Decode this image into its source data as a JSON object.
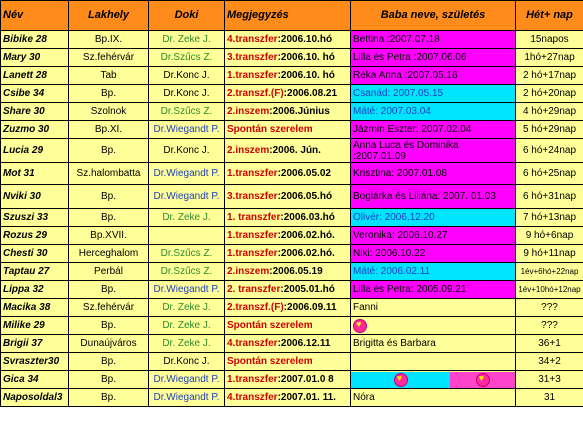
{
  "headers": {
    "nev": "Név",
    "lakhely": "Lakhely",
    "doki": "Doki",
    "megjegyzes": "Megjegyzés",
    "baba": "Baba neve, születés",
    "het": "Hét+ nap"
  },
  "rows": [
    {
      "nev": "Bibike 28",
      "lakhely": "Bp.IX.",
      "doki": "Dr. Zeke J.",
      "doki_color": "green",
      "meg_red": "4.transzfer",
      "meg_black": ":2006.10.hó",
      "baba": "Bettina :2007.07.18",
      "baba_bg": "magenta",
      "het": "15napos"
    },
    {
      "nev": "Mary 30",
      "lakhely": "Sz.fehérvár",
      "doki": "Dr.Szűcs Z.",
      "doki_color": "green",
      "meg_red": "3.transzfer",
      "meg_black": ":2006.10. hó",
      "baba": "Lilla és Petra :2007.06.06",
      "baba_bg": "magenta",
      "het": "1hó+27nap"
    },
    {
      "nev": "Lanett 28",
      "lakhely": "Tab",
      "doki": "Dr.Konc J.",
      "doki_color": "black",
      "meg_red": "1.transzfer",
      "meg_black": ":2006.10. hó",
      "baba": "Réka Anna :2007.05.16",
      "baba_bg": "magenta",
      "het": "2 hó+17nap"
    },
    {
      "nev": "Csibe 34",
      "lakhely": "Bp.",
      "doki": "Dr.Konc J.",
      "doki_color": "black",
      "meg_red": "2.transzf.(F)",
      "meg_black": ":2006.08.21",
      "baba": "Csanád: 2007.05.15",
      "baba_bg": "cyan",
      "het": "2 hó+20nap"
    },
    {
      "nev": "Share 30",
      "lakhely": "Szolnok",
      "doki": "Dr.Szűcs Z.",
      "doki_color": "green",
      "meg_red": "2.inszem",
      "meg_black": ":2006.Június",
      "baba": "Máté: 2007.03.04",
      "baba_bg": "cyan",
      "het": "4 hó+29nap"
    },
    {
      "nev": "Zuzmo 30",
      "lakhely": "Bp.XI.",
      "doki": "Dr.Wiegandt P.",
      "doki_color": "blue",
      "meg_red": "Spontán szerelem",
      "meg_black": "",
      "baba": "Jázmin Eszter: 2007.02.04",
      "baba_bg": "magenta",
      "het": "5 hó+29nap"
    },
    {
      "nev": "Lucia 29",
      "lakhely": "Bp.",
      "doki": "Dr.Konc J.",
      "doki_color": "black",
      "meg_red": "2.inszem",
      "meg_black": ":2006. Jún.",
      "baba": "Anna Luca és Dominika :2007.01.09",
      "baba_bg": "magenta",
      "het": "6 hó+24nap"
    },
    {
      "nev": "Mot 31",
      "lakhely": "Sz.halombatta",
      "doki": "Dr.Wiegandt P.",
      "doki_color": "blue",
      "meg_red": "1.transzfer",
      "meg_black": ":2006.05.02",
      "baba": "Krisztina: 2007.01.08",
      "baba_bg": "magenta",
      "het": "6 hó+25nap"
    },
    {
      "nev": "Nviki 30",
      "lakhely": "Bp.",
      "doki": "Dr.Wiegandt P.",
      "doki_color": "blue",
      "meg_red": "3.transzfer",
      "meg_black": ":2006.05.hó",
      "baba": "Boglárka és Liliána: 2007. 01.03",
      "baba_bg": "magenta",
      "het": "6 hó+31nap"
    },
    {
      "nev": "Szuszi 33",
      "lakhely": "Bp.",
      "doki": "Dr. Zeke J.",
      "doki_color": "green",
      "meg_red": "1. transzfer",
      "meg_black": ":2006.03.hó",
      "baba": "Olivér: 2006.12.20",
      "baba_bg": "cyan",
      "het": "7 hó+13nap"
    },
    {
      "nev": "Rozus 29",
      "lakhely": "Bp.XVII.",
      "doki": "",
      "doki_color": "black",
      "meg_red": "1.transzfer",
      "meg_black": ":2006.02.hó.",
      "baba": "Veronika: 2006.10.27",
      "baba_bg": "magenta",
      "het": "9 hó+6nap"
    },
    {
      "nev": "Chesti 30",
      "lakhely": "Herceghalom",
      "doki": "Dr.Szűcs Z.",
      "doki_color": "green",
      "meg_red": "1.transzfer",
      "meg_black": ":2006.02.hó.",
      "baba": "Niki: 2006.10.22",
      "baba_bg": "magenta",
      "het": "9 hó+11nap"
    },
    {
      "nev": "Taptau 27",
      "lakhely": "Perbál",
      "doki": "Dr.Szűcs Z.",
      "doki_color": "green",
      "meg_red": "2.inszem",
      "meg_black": ":2006.05.19",
      "baba": "Máté: 2006.02.11",
      "baba_bg": "cyan",
      "het": "1év+6hó+22nap"
    },
    {
      "nev": "Lippa 32",
      "lakhely": "Bp.",
      "doki": "Dr.Wiegandt P.",
      "doki_color": "blue",
      "meg_red": "2. transzfer",
      "meg_black": ":2005.01.hó",
      "baba": "Lilla és Petra: 2005.09.21",
      "baba_bg": "magenta",
      "het": "1év+10hó+12nap"
    },
    {
      "nev": "Macika 38",
      "lakhely": "Sz.fehérvár",
      "doki": "Dr. Zeke J.",
      "doki_color": "green",
      "meg_red": "2.transzf.(F)",
      "meg_black": ":2006.09.11",
      "baba": "Fanni",
      "baba_bg": "yellow",
      "het": "???"
    },
    {
      "nev": "Milike 29",
      "lakhely": "Bp.",
      "doki": "Dr. Zeke J.",
      "doki_color": "green",
      "meg_red": "Spontán szerelem",
      "meg_black": "",
      "baba": "heart",
      "baba_bg": "yellow",
      "het": "???"
    },
    {
      "nev": "Brigii 37",
      "lakhely": "Dunaújváros",
      "doki": "Dr. Zeke J.",
      "doki_color": "green",
      "meg_red": "4.transzfer",
      "meg_black": ":2006.12.11",
      "baba": "Brigitta és Barbara",
      "baba_bg": "yellow",
      "het": "36+1"
    },
    {
      "nev": "Svraszter30",
      "lakhely": "Bp.",
      "doki": "Dr.Konc J.",
      "doki_color": "black",
      "meg_red": "Spontán szerelem",
      "meg_black": "",
      "baba": "",
      "baba_bg": "yellow",
      "het": "34+2"
    },
    {
      "nev": "Gica 34",
      "lakhely": "Bp.",
      "doki": "Dr.Wiegandt P.",
      "doki_color": "blue",
      "meg_red": "1.transzfer",
      "meg_black": ":2007.01.0 8",
      "baba": "split-hearts",
      "baba_bg": "split",
      "het": "31+3"
    },
    {
      "nev": "Naposoldal3",
      "lakhely": "Bp.",
      "doki": "Dr.Wiegandt P.",
      "doki_color": "blue",
      "meg_red": "4.transzfer",
      "meg_black": ":2007.01. 11.",
      "baba": "Nóra",
      "baba_bg": "yellow",
      "het": "31"
    }
  ]
}
